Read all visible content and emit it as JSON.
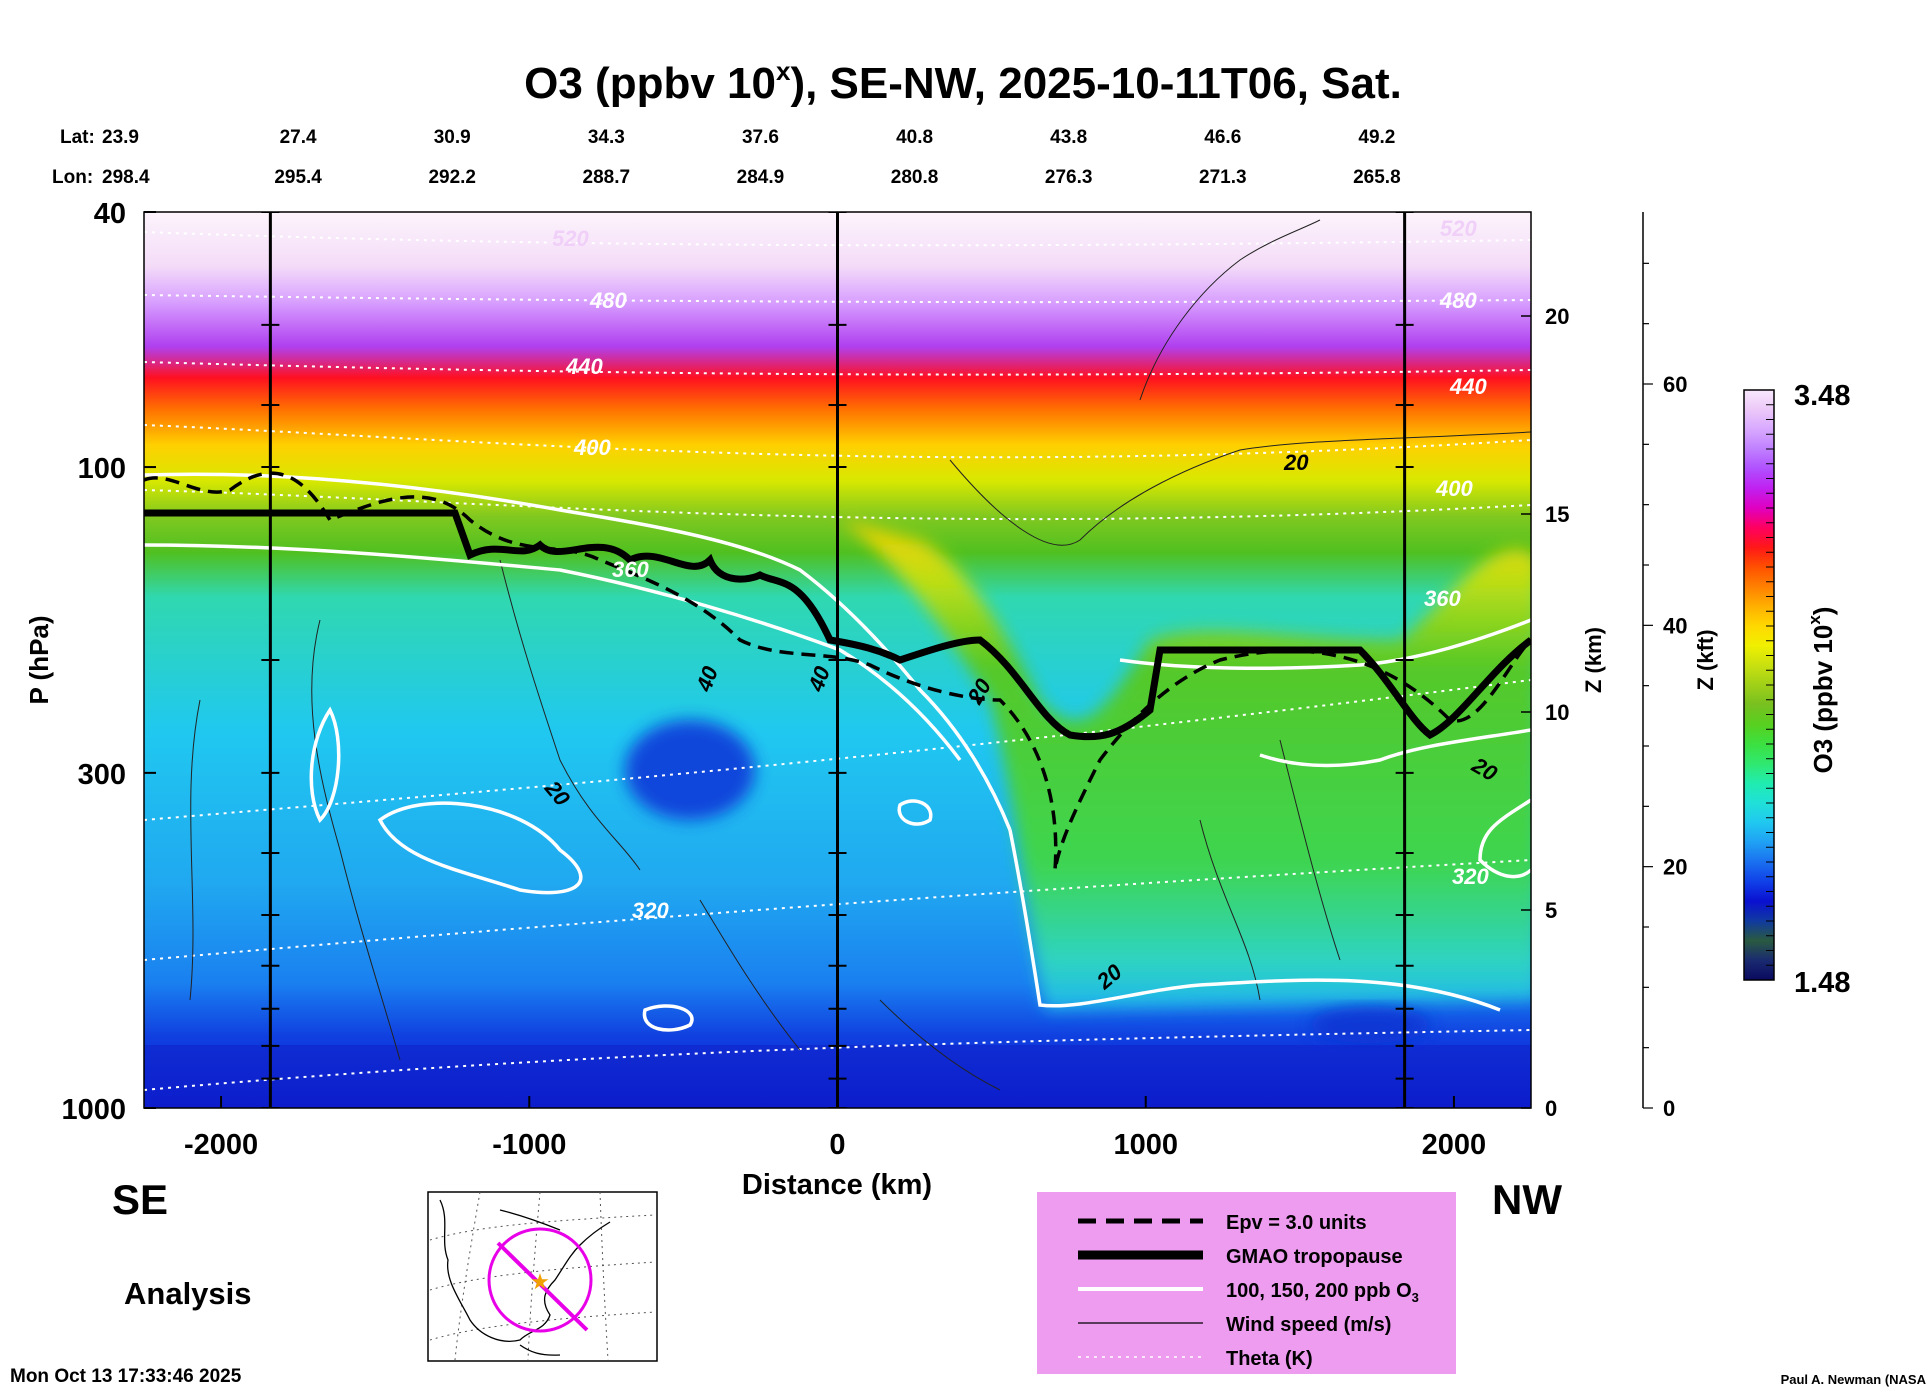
{
  "chart_data": {
    "type": "heatmap",
    "title": {
      "prefix": "O3 (ppbv 10",
      "superscript": "x",
      "suffix": "), SE-NW, 2025-10-11T06, Sat."
    },
    "xlabel": "Distance (km)",
    "ylabel": "P (hPa)",
    "right_axis_km_label": "Z (km)",
    "right_axis_kft_label": "Z (kft)",
    "xlim": [
      -2250,
      2250
    ],
    "x_ticks": [
      "-2000",
      "-1000",
      "0",
      "1000",
      "2000"
    ],
    "x_tick_values": [
      -2000,
      -1000,
      0,
      1000,
      2000
    ],
    "y_scale": "log",
    "ylim": [
      1000,
      40
    ],
    "y_ticks": [
      "40",
      "100",
      "300",
      "1000"
    ],
    "y_tick_values": [
      40,
      100,
      300,
      1000
    ],
    "z_km_ticks": [
      "0",
      "5",
      "10",
      "15",
      "20"
    ],
    "z_km_values": [
      0,
      5,
      10,
      15,
      20
    ],
    "z_kft_ticks": [
      "0",
      "20",
      "40",
      "60"
    ],
    "z_kft_values": [
      0,
      20,
      40,
      60
    ],
    "lat_label": "Lat:",
    "lon_label": "Lon:",
    "lat_values": [
      "23.9",
      "27.4",
      "30.9",
      "34.3",
      "37.6",
      "40.8",
      "43.8",
      "46.6",
      "49.2"
    ],
    "lon_values": [
      "298.4",
      "295.4",
      "292.2",
      "288.7",
      "284.9",
      "280.8",
      "276.3",
      "271.3",
      "265.8"
    ],
    "location_distances": [
      -2250,
      -1750,
      -1250,
      -750,
      -250,
      250,
      750,
      1250,
      1750
    ],
    "vertical_marker_lines": [
      -1840,
      0,
      1840
    ],
    "colorbar": {
      "label_prefix": "O3 (ppbv 10",
      "label_superscript": "x",
      "label_suffix": ")",
      "min": "1.48",
      "max": "3.48",
      "colors": [
        "#0a0a60",
        "#1a2a70",
        "#2a5a40",
        "#103aa0",
        "#0a10d0",
        "#1040e8",
        "#1a70f0",
        "#20a0f4",
        "#20c8f0",
        "#20e0d8",
        "#20ecb0",
        "#30e870",
        "#3ce040",
        "#58d020",
        "#78c020",
        "#a0d018",
        "#c8e010",
        "#f0f000",
        "#ffd800",
        "#ffb000",
        "#ff8000",
        "#ff5000",
        "#ff1818",
        "#ff0060",
        "#e000c0",
        "#c020f0",
        "#b050ff",
        "#c080ff",
        "#d8a8ff",
        "#ecc8f8",
        "#f8e8fc"
      ]
    },
    "contour_labels": {
      "theta": [
        "520",
        "480",
        "440",
        "400",
        "360",
        "320",
        "520",
        "480",
        "440",
        "400",
        "360",
        "320"
      ],
      "wind": [
        "20",
        "40",
        "40",
        "20",
        "20",
        "20",
        "20",
        "20"
      ]
    },
    "legend": {
      "position": "bottom-right",
      "items": [
        {
          "label": "Epv = 3.0 units",
          "style": "dashed"
        },
        {
          "label": "GMAO tropopause",
          "style": "thick"
        },
        {
          "label": "100, 150, 200 ppb O",
          "subscript": "3",
          "style": "white"
        },
        {
          "label": "Wind speed (m/s)",
          "style": "thin"
        },
        {
          "label": "Theta (K)",
          "style": "dotted"
        }
      ]
    },
    "direction_left": "SE",
    "direction_right": "NW",
    "analysis_label": "Analysis",
    "timestamp": "Mon Oct 13 17:33:46 2025",
    "credit": "Paul A. Newman (NASA"
  }
}
